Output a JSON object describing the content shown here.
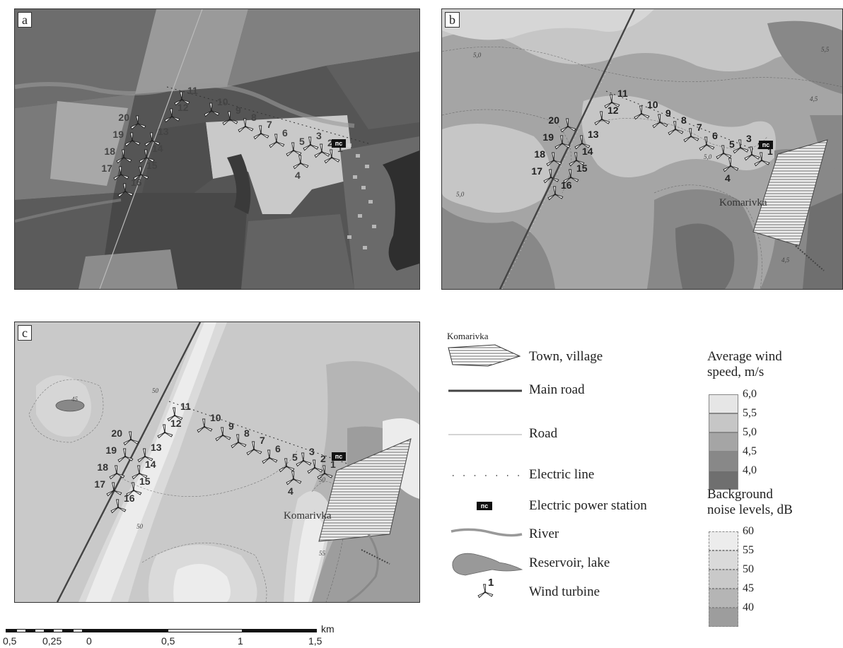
{
  "panels": {
    "a": {
      "label": "a"
    },
    "b": {
      "label": "b"
    },
    "c": {
      "label": "c"
    }
  },
  "village_name": "Komarivka",
  "power_station_symbol": "пс",
  "turbines": [
    {
      "id": "1"
    },
    {
      "id": "2"
    },
    {
      "id": "3"
    },
    {
      "id": "4"
    },
    {
      "id": "5"
    },
    {
      "id": "6"
    },
    {
      "id": "7"
    },
    {
      "id": "8"
    },
    {
      "id": "9"
    },
    {
      "id": "10"
    },
    {
      "id": "11"
    },
    {
      "id": "12"
    },
    {
      "id": "13"
    },
    {
      "id": "14"
    },
    {
      "id": "15"
    },
    {
      "id": "16"
    },
    {
      "id": "17"
    },
    {
      "id": "18"
    },
    {
      "id": "19"
    },
    {
      "id": "20"
    }
  ],
  "contour_labels_b": [
    "5,0",
    "5,0",
    "5,0",
    "4,5",
    "4,5",
    "5,5"
  ],
  "contour_labels_c": [
    "50",
    "45",
    "50",
    "50",
    "55"
  ],
  "legend": {
    "symbol_label": "Komarivka",
    "town": "Town, village",
    "main_road": "Main road",
    "road": "Road",
    "electric_line": "Electric line",
    "power_station": "Electric power station",
    "river": "River",
    "reservoir": "Reservoir, lake",
    "wind_turbine": "Wind turbine",
    "turbine_number": "1"
  },
  "wind_ramp": {
    "title_line1": "Average wind",
    "title_line2": "speed, m/s",
    "ticks": [
      "6,0",
      "5,5",
      "5,0",
      "4,5",
      "4,0"
    ],
    "colors": [
      "#e6e6e6",
      "#c6c6c6",
      "#a5a5a5",
      "#888888",
      "#6f6f6f"
    ]
  },
  "noise_ramp": {
    "title_line1": "Background",
    "title_line2": "noise levels, dB",
    "ticks": [
      "60",
      "55",
      "50",
      "45",
      "40"
    ],
    "colors": [
      "#ececec",
      "#dadada",
      "#c9c9c9",
      "#b5b5b5",
      "#9d9d9d"
    ]
  },
  "scale_bar": {
    "ticks": [
      "0,5",
      "0,25",
      "0",
      "0,5",
      "1",
      "1,5"
    ],
    "unit": "km"
  }
}
